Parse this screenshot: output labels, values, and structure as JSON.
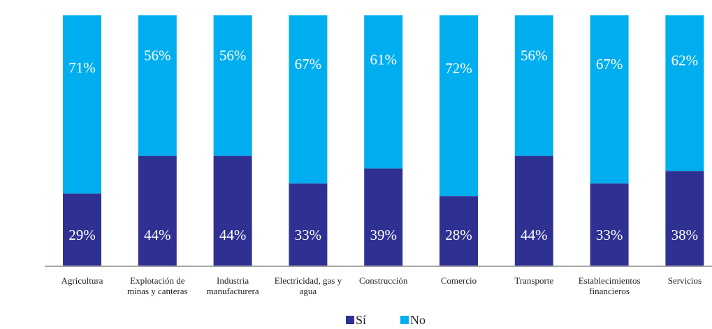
{
  "chart_data": {
    "type": "bar",
    "stacked": true,
    "percent_stacked": true,
    "categories": [
      [
        "Agricultura"
      ],
      [
        "Explotación de",
        "minas y canteras"
      ],
      [
        "Industria",
        "manufacturera"
      ],
      [
        "Electricidad, gas y",
        "agua"
      ],
      [
        "Construcción"
      ],
      [
        "Comercio"
      ],
      [
        "Transporte"
      ],
      [
        "Establecimientos",
        "financieros"
      ],
      [
        "Servicios"
      ]
    ],
    "series": [
      {
        "name": "Sí",
        "values": [
          29,
          44,
          44,
          33,
          39,
          28,
          44,
          33,
          38
        ],
        "color": "#2e3192"
      },
      {
        "name": "No",
        "values": [
          71,
          56,
          56,
          67,
          61,
          72,
          56,
          67,
          62
        ],
        "color": "#00aeef"
      }
    ],
    "value_suffix": "%",
    "ylim": [
      0,
      100
    ],
    "grid": false,
    "legend_position": "bottom-center",
    "title": "",
    "xlabel": "",
    "ylabel": ""
  }
}
